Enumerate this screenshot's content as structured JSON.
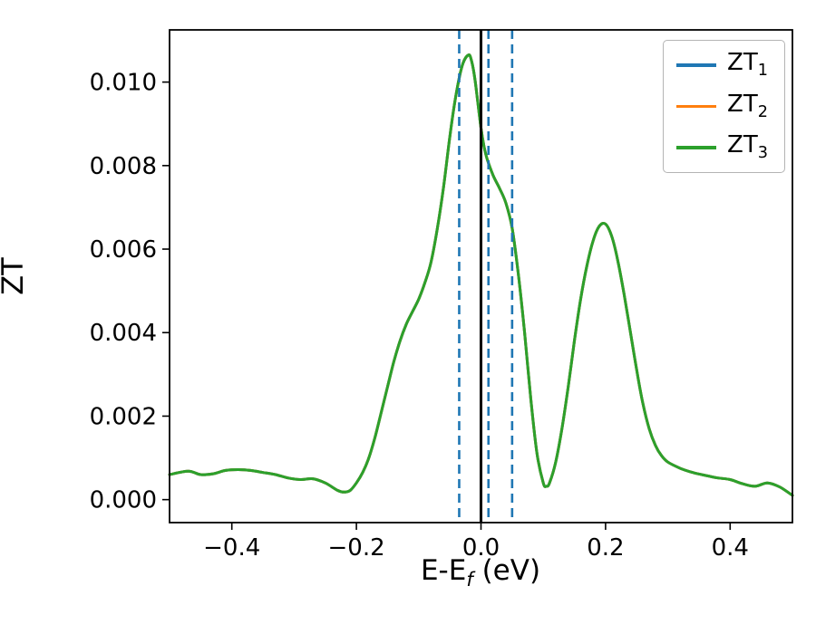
{
  "figure": {
    "ylabel": "ZT",
    "xlabel_main": "E-E",
    "xlabel_sub": "f",
    "xlabel_rest": " (eV)",
    "legend": [
      {
        "label_main": "ZT",
        "label_sub": "1",
        "color": "#1f77b4"
      },
      {
        "label_main": "ZT",
        "label_sub": "2",
        "color": "#ff7f0e"
      },
      {
        "label_main": "ZT",
        "label_sub": "3",
        "color": "#2ca02c"
      }
    ]
  },
  "chart_data": {
    "type": "line",
    "title": "",
    "xlabel": "E-E_f (eV)",
    "ylabel": "ZT",
    "xlim": [
      -0.5,
      0.5
    ],
    "ylim": [
      -0.00055,
      0.01125
    ],
    "xticks": [
      -0.4,
      -0.2,
      0.0,
      0.2,
      0.4
    ],
    "xtick_labels": [
      "−0.4",
      "−0.2",
      "0.0",
      "0.2",
      "0.4"
    ],
    "yticks": [
      0.0,
      0.002,
      0.004,
      0.006,
      0.008,
      0.01
    ],
    "ytick_labels": [
      "0.000",
      "0.002",
      "0.004",
      "0.006",
      "0.008",
      "0.010"
    ],
    "grid": false,
    "legend_position": "upper right",
    "series": [
      {
        "name": "ZT1",
        "color": "#1f77b4",
        "note": "curve coincides exactly with ZT3 (hidden underneath)"
      },
      {
        "name": "ZT2",
        "color": "#ff7f0e",
        "note": "curve coincides exactly with ZT3 (hidden underneath)"
      },
      {
        "name": "ZT3",
        "color": "#2ca02c",
        "note": "visible curve"
      }
    ],
    "x": [
      -0.5,
      -0.47,
      -0.45,
      -0.43,
      -0.41,
      -0.39,
      -0.37,
      -0.35,
      -0.33,
      -0.31,
      -0.29,
      -0.27,
      -0.25,
      -0.23,
      -0.22,
      -0.21,
      -0.2,
      -0.19,
      -0.18,
      -0.17,
      -0.16,
      -0.15,
      -0.14,
      -0.13,
      -0.12,
      -0.11,
      -0.1,
      -0.09,
      -0.08,
      -0.07,
      -0.06,
      -0.05,
      -0.04,
      -0.03,
      -0.02,
      -0.015,
      -0.01,
      -0.005,
      0.0,
      0.005,
      0.01,
      0.02,
      0.03,
      0.04,
      0.05,
      0.06,
      0.07,
      0.08,
      0.09,
      0.1,
      0.105,
      0.11,
      0.12,
      0.13,
      0.14,
      0.15,
      0.16,
      0.17,
      0.18,
      0.19,
      0.2,
      0.21,
      0.22,
      0.23,
      0.24,
      0.25,
      0.26,
      0.27,
      0.28,
      0.29,
      0.3,
      0.32,
      0.34,
      0.36,
      0.38,
      0.4,
      0.42,
      0.44,
      0.46,
      0.48,
      0.5
    ],
    "y": [
      0.0006,
      0.00068,
      0.0006,
      0.00062,
      0.0007,
      0.00072,
      0.0007,
      0.00065,
      0.0006,
      0.00052,
      0.00048,
      0.0005,
      0.0004,
      0.00022,
      0.00018,
      0.00022,
      0.0004,
      0.00065,
      0.001,
      0.0015,
      0.0021,
      0.0027,
      0.0033,
      0.0038,
      0.0042,
      0.0045,
      0.0048,
      0.0052,
      0.0057,
      0.0065,
      0.0075,
      0.0087,
      0.0097,
      0.0104,
      0.01065,
      0.0105,
      0.0101,
      0.0095,
      0.0089,
      0.00845,
      0.00815,
      0.00775,
      0.00745,
      0.0071,
      0.0065,
      0.0054,
      0.004,
      0.0024,
      0.0011,
      0.0004,
      0.00032,
      0.0004,
      0.0009,
      0.0017,
      0.0027,
      0.0038,
      0.0048,
      0.0056,
      0.0062,
      0.00655,
      0.0066,
      0.0063,
      0.0057,
      0.0049,
      0.004,
      0.0031,
      0.0023,
      0.0017,
      0.0013,
      0.00105,
      0.0009,
      0.00075,
      0.00065,
      0.00058,
      0.00052,
      0.00048,
      0.00038,
      0.00032,
      0.0004,
      0.0003,
      0.0001
    ],
    "vlines": [
      {
        "x": 0.0,
        "color": "#000000",
        "style": "solid"
      },
      {
        "x": -0.035,
        "color": "#1f77b4",
        "style": "dashed"
      },
      {
        "x": 0.012,
        "color": "#1f77b4",
        "style": "dashed"
      },
      {
        "x": 0.05,
        "color": "#1f77b4",
        "style": "dashed"
      }
    ]
  }
}
